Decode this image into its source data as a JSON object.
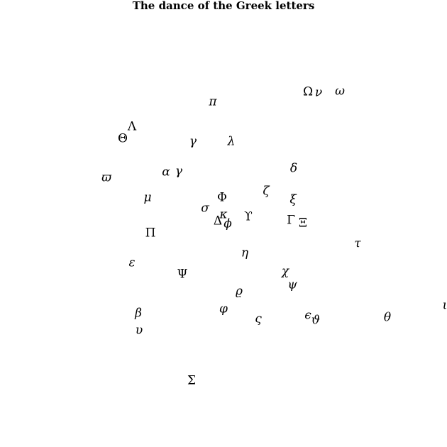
{
  "title": "The dance of the Greek letters",
  "colors": {
    "background": "#ffffff",
    "text": "#000000"
  },
  "letters": [
    {
      "name": "pi",
      "char": "π",
      "style": "italic"
    },
    {
      "name": "Omega",
      "char": "Ω",
      "style": "upright"
    },
    {
      "name": "nu",
      "char": "ν",
      "style": "italic"
    },
    {
      "name": "omega",
      "char": "ω",
      "style": "italic"
    },
    {
      "name": "Lambda",
      "char": "Λ",
      "style": "upright"
    },
    {
      "name": "Theta",
      "char": "Θ",
      "style": "upright"
    },
    {
      "name": "gamma-1",
      "char": "γ",
      "style": "italic"
    },
    {
      "name": "lambda",
      "char": "λ",
      "style": "italic"
    },
    {
      "name": "varpi",
      "char": "ϖ",
      "style": "italic"
    },
    {
      "name": "alpha",
      "char": "α",
      "style": "italic"
    },
    {
      "name": "gamma-2",
      "char": "γ",
      "style": "italic"
    },
    {
      "name": "delta",
      "char": "δ",
      "style": "italic"
    },
    {
      "name": "mu",
      "char": "μ",
      "style": "italic"
    },
    {
      "name": "Phi",
      "char": "Φ",
      "style": "upright"
    },
    {
      "name": "zeta",
      "char": "ζ",
      "style": "italic"
    },
    {
      "name": "xi",
      "char": "ξ",
      "style": "italic"
    },
    {
      "name": "sigma",
      "char": "σ",
      "style": "italic"
    },
    {
      "name": "kappa",
      "char": "κ",
      "style": "italic"
    },
    {
      "name": "Delta",
      "char": "Δ",
      "style": "upright"
    },
    {
      "name": "phi",
      "char": "ϕ",
      "style": "italic"
    },
    {
      "name": "Upsilon",
      "char": "ϒ",
      "style": "upright"
    },
    {
      "name": "Gamma",
      "char": "Γ",
      "style": "upright"
    },
    {
      "name": "Xi",
      "char": "Ξ",
      "style": "upright"
    },
    {
      "name": "Pi",
      "char": "Π",
      "style": "upright"
    },
    {
      "name": "tau",
      "char": "τ",
      "style": "italic"
    },
    {
      "name": "eta",
      "char": "η",
      "style": "italic"
    },
    {
      "name": "varepsilon",
      "char": "ε",
      "style": "italic"
    },
    {
      "name": "Psi",
      "char": "Ψ",
      "style": "upright"
    },
    {
      "name": "chi",
      "char": "χ",
      "style": "italic"
    },
    {
      "name": "psi",
      "char": "ψ",
      "style": "italic"
    },
    {
      "name": "varrho",
      "char": "ϱ",
      "style": "italic"
    },
    {
      "name": "varphi",
      "char": "φ",
      "style": "italic"
    },
    {
      "name": "beta",
      "char": "β",
      "style": "italic"
    },
    {
      "name": "varsigma",
      "char": "ς",
      "style": "italic"
    },
    {
      "name": "epsilon",
      "char": "ϵ",
      "style": "italic"
    },
    {
      "name": "vartheta",
      "char": "ϑ",
      "style": "italic"
    },
    {
      "name": "theta",
      "char": "θ",
      "style": "italic"
    },
    {
      "name": "iota",
      "char": "ι",
      "style": "italic"
    },
    {
      "name": "upsilon",
      "char": "υ",
      "style": "italic"
    },
    {
      "name": "Sigma",
      "char": "Σ",
      "style": "upright"
    }
  ]
}
